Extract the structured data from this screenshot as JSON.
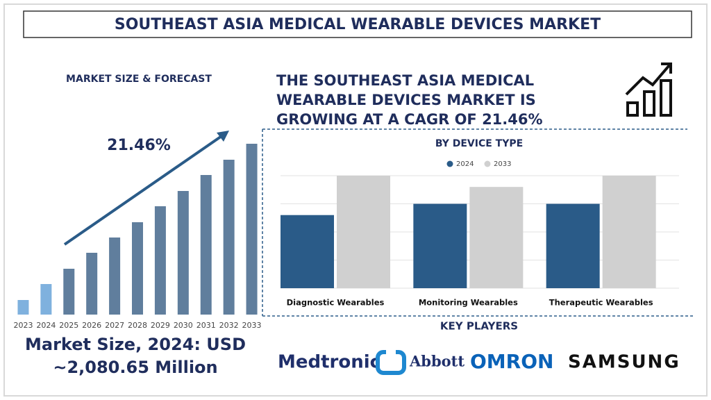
{
  "title": "SOUTHEAST ASIA MEDICAL WEARABLE DEVICES MARKET",
  "headline": [
    "THE SOUTHEAST ASIA MEDICAL",
    "WEARABLE DEVICES MARKET IS",
    "GROWING AT A CAGR OF 21.46%"
  ],
  "market_size": [
    "Market Size, 2024: USD",
    "~2,080.65 Million"
  ],
  "key_players": {
    "title": "KEY PLAYERS",
    "names": [
      "Medtronic",
      "Abbott",
      "OMRON",
      "SAMSUNG"
    ]
  },
  "chart_data": [
    {
      "type": "bar",
      "title": "MARKET SIZE & FORECAST",
      "annotation": "21.46%",
      "categories": [
        "2023",
        "2024",
        "2025",
        "2026",
        "2027",
        "2028",
        "2029",
        "2030",
        "2031",
        "2032",
        "2033"
      ],
      "values": [
        21,
        44,
        66,
        89,
        111,
        133,
        156,
        178,
        201,
        223,
        246
      ],
      "colors": [
        "#7fb1de",
        "#7fb1de",
        "#607e9d",
        "#607e9d",
        "#607e9d",
        "#607e9d",
        "#607e9d",
        "#607e9d",
        "#607e9d",
        "#607e9d",
        "#607e9d"
      ],
      "ylim": [
        0,
        246
      ]
    },
    {
      "type": "grouped-bar",
      "title": "BY DEVICE TYPE",
      "categories": [
        "Diagnostic Wearables",
        "Monitoring Wearables",
        "Therapeutic Wearables"
      ],
      "series": [
        {
          "name": "2024",
          "color": "#2a5b88",
          "values": [
            2.6,
            3,
            3
          ]
        },
        {
          "name": "2033",
          "color": "#d0d0d0",
          "values": [
            4,
            3.6,
            4
          ]
        }
      ],
      "ylim": [
        0,
        4
      ],
      "yticks": [
        0,
        1,
        2,
        3,
        4
      ],
      "grid": true
    }
  ]
}
